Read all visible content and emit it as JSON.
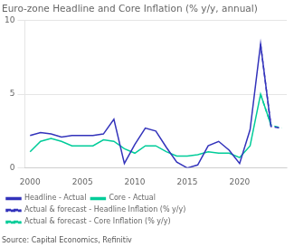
{
  "chart_data": {
    "type": "line",
    "title": "Euro-zone Headline and Core Inflation (% y/y, annual)",
    "source": "Source: Capital Economics, Refinitiv",
    "series": [
      {
        "name": "Headline - Actual",
        "color": "#3333bb",
        "line_style": "solid",
        "x": [
          2000,
          2001,
          2002,
          2003,
          2004,
          2005,
          2006,
          2007,
          2008,
          2009,
          2010,
          2011,
          2012,
          2013,
          2014,
          2015,
          2016,
          2017,
          2018,
          2019,
          2020,
          2021,
          2022,
          2023
        ],
        "values": [
          2.2,
          2.4,
          2.3,
          2.1,
          2.2,
          2.2,
          2.2,
          2.3,
          3.3,
          0.3,
          1.6,
          2.7,
          2.5,
          1.4,
          0.4,
          0.0,
          0.2,
          1.5,
          1.8,
          1.2,
          0.3,
          2.6,
          8.4,
          2.8
        ]
      },
      {
        "name": "Core - Actual",
        "color": "#00cc99",
        "line_style": "solid",
        "x": [
          2000,
          2001,
          2002,
          2003,
          2004,
          2005,
          2006,
          2007,
          2008,
          2009,
          2010,
          2011,
          2012,
          2013,
          2014,
          2015,
          2016,
          2017,
          2018,
          2019,
          2020,
          2021,
          2022,
          2023
        ],
        "values": [
          1.1,
          1.8,
          2.0,
          1.8,
          1.5,
          1.5,
          1.5,
          1.9,
          1.8,
          1.3,
          1.0,
          1.5,
          1.5,
          1.1,
          0.8,
          0.8,
          0.9,
          1.1,
          1.0,
          1.0,
          0.7,
          1.5,
          5.0,
          2.9
        ]
      },
      {
        "name": "Actual & forecast - Headline Inflation (% y/y)",
        "color": "#3333bb",
        "line_style": "dashed",
        "x": [
          2022,
          2023,
          2024
        ],
        "values": [
          8.4,
          2.8,
          2.7
        ]
      },
      {
        "name": "Actual & forecast - Core Inflation (% y/y)",
        "color": "#00cc99",
        "line_style": "dashed",
        "x": [
          2022,
          2023,
          2024
        ],
        "values": [
          5.0,
          2.9,
          2.7
        ]
      }
    ],
    "xlim": [
      1999.5,
      2024.5
    ],
    "xticks": [
      2000,
      2005,
      2010,
      2015,
      2020
    ],
    "ylim": [
      0,
      10
    ],
    "yticks": [
      0,
      5,
      10
    ],
    "grid": "y",
    "legend": "bottom"
  }
}
